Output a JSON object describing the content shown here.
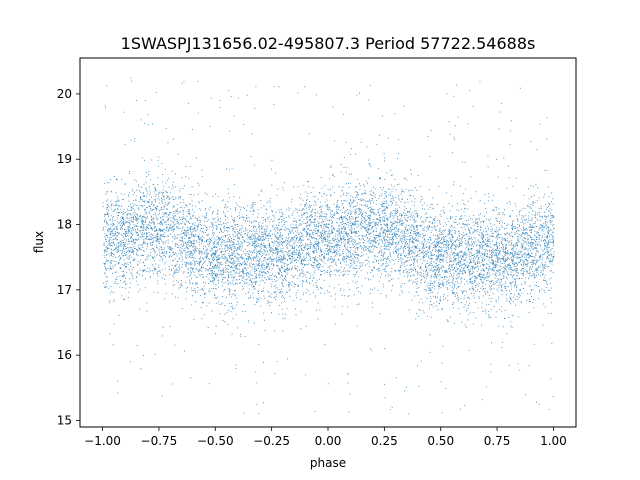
{
  "chart_data": {
    "type": "scatter",
    "title": "1SWASPJ131656.02-495807.3 Period 57722.54688s",
    "xlabel": "phase",
    "ylabel": "flux",
    "xlim": [
      -1.1,
      1.1
    ],
    "ylim": [
      14.9,
      20.55
    ],
    "xticks": [
      -1.0,
      -0.75,
      -0.5,
      -0.25,
      0.0,
      0.25,
      0.5,
      0.75,
      1.0
    ],
    "xtick_labels": [
      "−1.00",
      "−0.75",
      "−0.50",
      "−0.25",
      "0.00",
      "0.25",
      "0.50",
      "0.75",
      "1.00"
    ],
    "yticks": [
      15,
      16,
      17,
      18,
      19,
      20
    ],
    "ytick_labels": [
      "15",
      "16",
      "17",
      "18",
      "19",
      "20"
    ],
    "grid": false,
    "marker_color": "#1f77b4",
    "series": [
      {
        "x_range": [
          -1.0,
          1.0
        ],
        "profile": {
          "phase": [
            -1.0,
            -0.75,
            -0.5,
            -0.25,
            0.0,
            0.25,
            0.5,
            0.75,
            1.0
          ],
          "median_flux": [
            17.75,
            17.95,
            17.55,
            17.55,
            17.8,
            17.95,
            17.5,
            17.5,
            17.75
          ]
        },
        "scatter_sigma": 0.38,
        "outlier_range": [
          15.1,
          20.3
        ]
      }
    ]
  }
}
